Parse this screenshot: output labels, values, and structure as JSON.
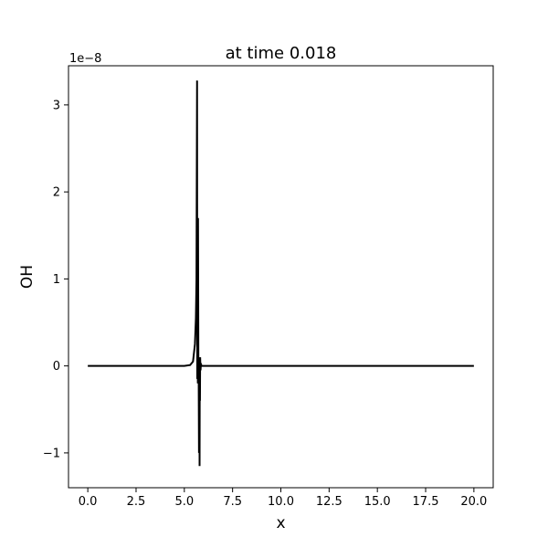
{
  "chart_data": {
    "type": "line",
    "title": "at time 0.018",
    "xlabel": "x",
    "ylabel": "OH",
    "y_offset_label": "1e−8",
    "xlim": [
      -1.0,
      21.0
    ],
    "ylim": [
      -1.4,
      3.45
    ],
    "grid": false,
    "x_ticks": [
      0.0,
      2.5,
      5.0,
      7.5,
      10.0,
      12.5,
      15.0,
      17.5,
      20.0
    ],
    "x_tick_labels": [
      "0.0",
      "2.5",
      "5.0",
      "7.5",
      "10.0",
      "12.5",
      "15.0",
      "17.5",
      "20.0"
    ],
    "y_ticks": [
      -1,
      0,
      1,
      2,
      3
    ],
    "y_tick_labels": [
      "−1",
      "0",
      "1",
      "2",
      "3"
    ],
    "series": [
      {
        "color": "#000000",
        "x": [
          0.0,
          2.5,
          5.0,
          5.3,
          5.45,
          5.55,
          5.6,
          5.63,
          5.66,
          5.67,
          5.68,
          5.7,
          5.71,
          5.73,
          5.74,
          5.76,
          5.78,
          5.79,
          5.8,
          5.81,
          5.82,
          5.84,
          5.86,
          5.88,
          5.9,
          6.0,
          7.5,
          10.0,
          12.5,
          15.0,
          17.5,
          20.0
        ],
        "y": [
          0.0,
          0.0,
          0.0,
          0.01,
          0.05,
          0.25,
          0.55,
          1.0,
          3.28,
          -0.15,
          1.0,
          -0.2,
          1.7,
          -0.15,
          0.1,
          -1.0,
          0.05,
          -1.15,
          0.05,
          -0.4,
          0.1,
          -0.05,
          0.03,
          0.0,
          0.0,
          0.0,
          0.0,
          0.0,
          0.0,
          0.0,
          0.0,
          0.0
        ]
      }
    ]
  }
}
